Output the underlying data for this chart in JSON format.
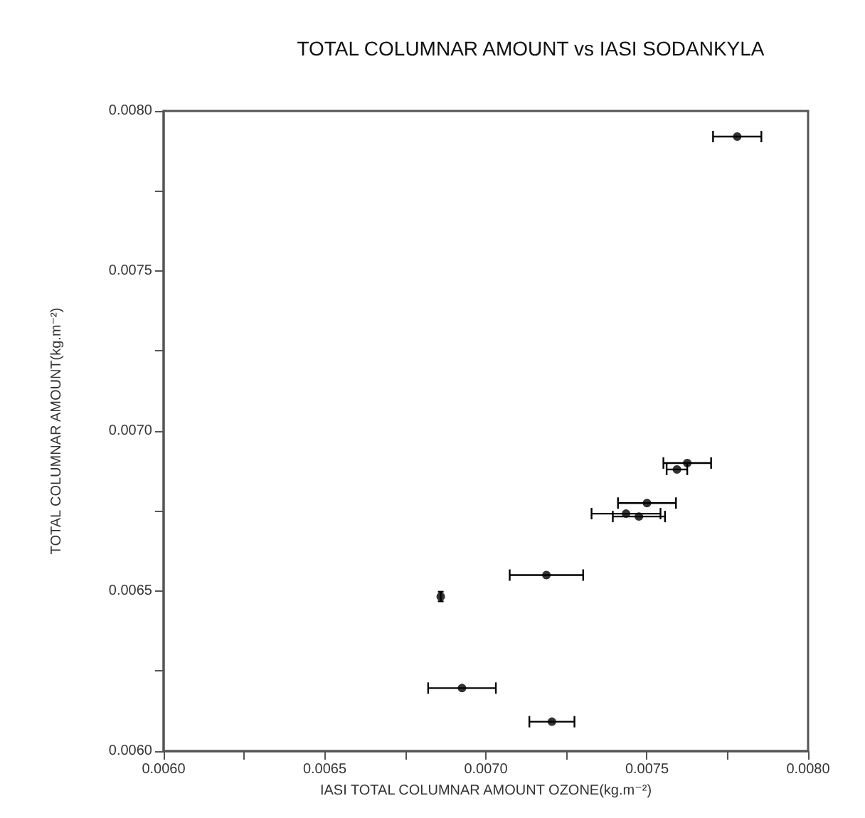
{
  "chart_data": {
    "type": "scatter",
    "title": "TOTAL COLUMNAR AMOUNT vs IASI SODANKYLA",
    "xlabel": "IASI TOTAL COLUMNAR AMOUNT OZONE(kg.m⁻²)",
    "ylabel": "TOTAL COLUMNAR AMOUNT(kg.m⁻²)",
    "x": [
      0.00778,
      0.007625,
      0.007593,
      0.0075,
      0.007435,
      0.007475,
      0.007188,
      0.00686,
      0.006926,
      0.007205
    ],
    "values": [
      0.00792,
      0.0069,
      0.00688,
      0.006775,
      0.006742,
      0.006733,
      0.00655,
      0.006483,
      0.006197,
      0.006092
    ],
    "xerrors": [
      7.5e-05,
      7.4e-05,
      3.2e-05,
      9e-05,
      0.000107,
      8.1e-05,
      0.000114,
      null,
      0.000105,
      7e-05
    ],
    "errors": [
      null,
      null,
      null,
      null,
      null,
      null,
      null,
      1.5e-05,
      null,
      null
    ],
    "color": "#000000",
    "marker": "circle",
    "xlim": [
      0.006,
      0.008
    ],
    "ylim": [
      0.006,
      0.008
    ],
    "xticks": [
      {
        "value": 0.006,
        "label": "0.0060"
      },
      {
        "value": 0.00625,
        "label": null
      },
      {
        "value": 0.0065,
        "label": "0.0065"
      },
      {
        "value": 0.00675,
        "label": null
      },
      {
        "value": 0.007,
        "label": "0.0070"
      },
      {
        "value": 0.00725,
        "label": null
      },
      {
        "value": 0.0075,
        "label": "0.0075"
      },
      {
        "value": 0.00775,
        "label": null
      },
      {
        "value": 0.008,
        "label": "0.0080"
      }
    ],
    "yticks": [
      {
        "value": 0.006,
        "label": "0.0060"
      },
      {
        "value": 0.00625,
        "label": null
      },
      {
        "value": 0.0065,
        "label": "0.0065"
      },
      {
        "value": 0.00675,
        "label": null
      },
      {
        "value": 0.007,
        "label": "0.0070"
      },
      {
        "value": 0.00725,
        "label": null
      },
      {
        "value": 0.0075,
        "label": "0.0075"
      },
      {
        "value": 0.00775,
        "label": null
      },
      {
        "value": 0.008,
        "label": "0.0080"
      }
    ],
    "grid": false
  }
}
